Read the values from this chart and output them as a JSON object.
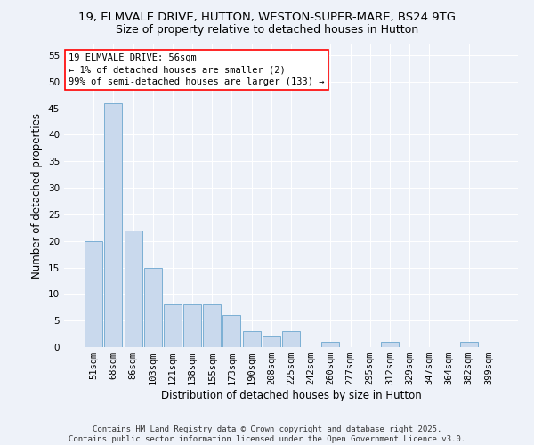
{
  "title_line1": "19, ELMVALE DRIVE, HUTTON, WESTON-SUPER-MARE, BS24 9TG",
  "title_line2": "Size of property relative to detached houses in Hutton",
  "xlabel": "Distribution of detached houses by size in Hutton",
  "ylabel": "Number of detached properties",
  "bar_color": "#c9d9ed",
  "bar_edge_color": "#7bafd4",
  "background_color": "#eef2f9",
  "categories": [
    "51sqm",
    "68sqm",
    "86sqm",
    "103sqm",
    "121sqm",
    "138sqm",
    "155sqm",
    "173sqm",
    "190sqm",
    "208sqm",
    "225sqm",
    "242sqm",
    "260sqm",
    "277sqm",
    "295sqm",
    "312sqm",
    "329sqm",
    "347sqm",
    "364sqm",
    "382sqm",
    "399sqm"
  ],
  "values": [
    20,
    46,
    22,
    15,
    8,
    8,
    8,
    6,
    3,
    2,
    3,
    0,
    1,
    0,
    0,
    1,
    0,
    0,
    0,
    1,
    0
  ],
  "ylim": [
    0,
    57
  ],
  "yticks": [
    0,
    5,
    10,
    15,
    20,
    25,
    30,
    35,
    40,
    45,
    50,
    55
  ],
  "annotation_text": "19 ELMVALE DRIVE: 56sqm\n← 1% of detached houses are smaller (2)\n99% of semi-detached houses are larger (133) →",
  "footer_line1": "Contains HM Land Registry data © Crown copyright and database right 2025.",
  "footer_line2": "Contains public sector information licensed under the Open Government Licence v3.0.",
  "grid_color": "#ffffff",
  "title_fontsize": 9.5,
  "subtitle_fontsize": 9,
  "axis_label_fontsize": 8.5,
  "tick_fontsize": 7.5,
  "annotation_fontsize": 7.5,
  "footer_fontsize": 6.5
}
